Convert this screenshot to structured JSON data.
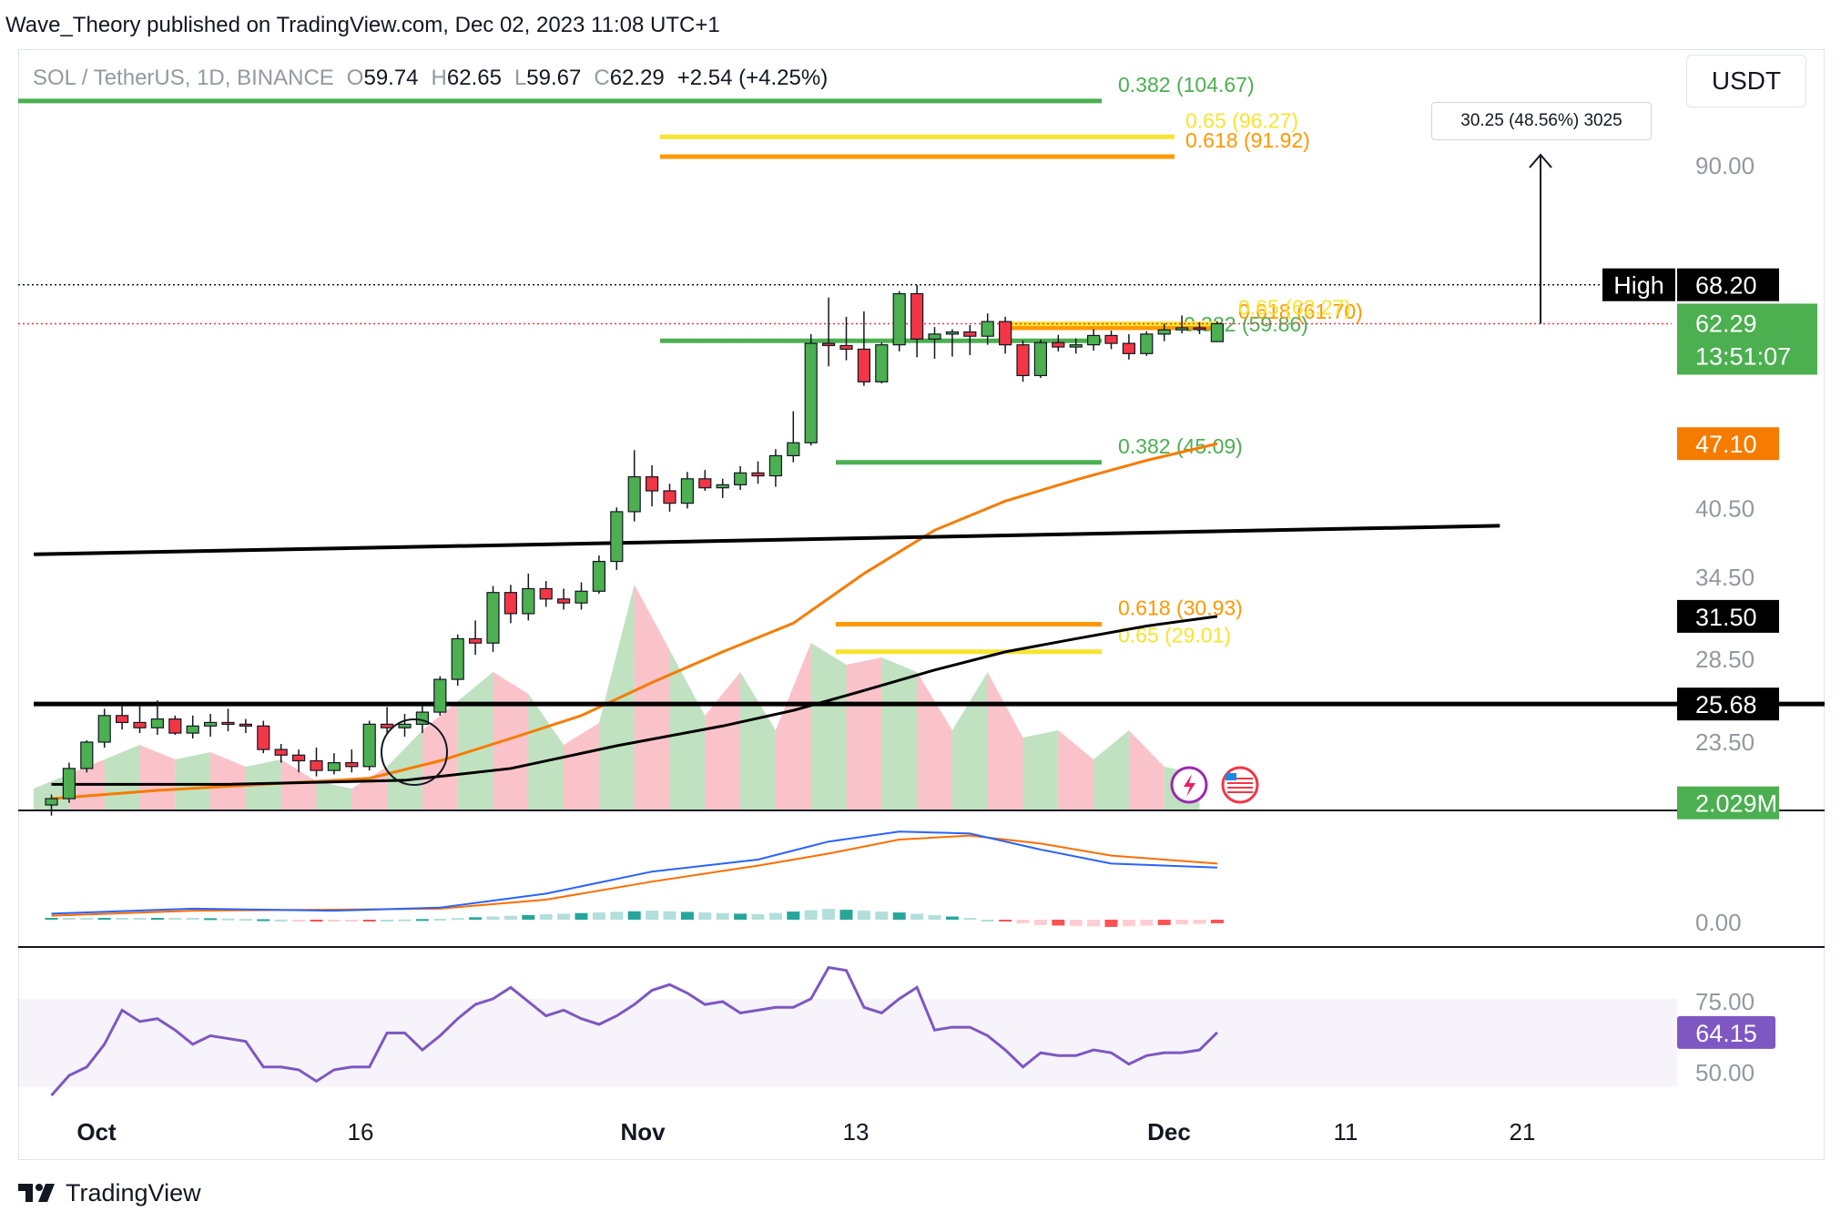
{
  "header": {
    "publisher_line": "Wave_Theory published on TradingView.com, Dec 02, 2023 11:08 UTC+1"
  },
  "symbol": {
    "title": "SOL / TetherUS, 1D, BINANCE",
    "o_label": "O",
    "o_value": "59.74",
    "h_label": "H",
    "h_value": "62.65",
    "l_label": "L",
    "l_value": "59.67",
    "c_label": "C",
    "c_value": "62.29",
    "change": "+2.54 (+4.25%)"
  },
  "currency_button": "USDT",
  "measure_label": "30.25 (48.56%) 3025",
  "brand": "TradingView",
  "colors": {
    "up": "#4caf50",
    "down": "#f23645",
    "fib_green": "#4caf50",
    "fib_yellow": "#f7e42f",
    "fib_orange": "#ff9800",
    "ema_orange": "#f57c00",
    "ma_black": "#000000",
    "rsi": "#7e57c2",
    "macd": "#2962ff",
    "signal": "#ff6d00"
  },
  "chart_data": {
    "type": "candlestick",
    "price_axis": {
      "ticks": [
        90.0,
        40.5,
        34.5,
        28.5,
        23.5
      ],
      "tick_labels": [
        "90.00",
        "40.50",
        "34.50",
        "28.50",
        "23.50"
      ],
      "scale": "log",
      "visible_range": [
        19.5,
        116
      ]
    },
    "time_axis": {
      "labels": [
        "Oct",
        "16",
        "Nov",
        "13",
        "Dec",
        "11",
        "21"
      ]
    },
    "price_tags": [
      {
        "text": "High",
        "value": "68.20",
        "color": "#000000",
        "price": 68.2
      },
      {
        "text": "",
        "value": "62.29",
        "sub": "13:51:07",
        "color": "#4caf50",
        "price": 62.29
      },
      {
        "text": "",
        "value": "47.10",
        "color": "#f57c00",
        "price": 47.1
      },
      {
        "text": "",
        "value": "31.50",
        "color": "#000000",
        "price": 31.5
      },
      {
        "text": "",
        "value": "25.68",
        "color": "#000000",
        "price": 25.68
      },
      {
        "text": "",
        "value": "2.029M",
        "color": "#4caf50",
        "price": 20.4
      }
    ],
    "fib_levels": [
      {
        "label": "0.382 (104.67)",
        "price": 104.67,
        "color": "#4caf50"
      },
      {
        "label": "0.65 (96.27)",
        "price": 96.27,
        "color": "#f7e42f"
      },
      {
        "label": "0.618 (91.92)",
        "price": 91.92,
        "color": "#ff9800"
      },
      {
        "label": "0.382 (59.86)",
        "price": 59.86,
        "color": "#4caf50"
      },
      {
        "label": "0.618 (61.70)",
        "price": 61.7,
        "color": "#ff9800"
      },
      {
        "label": "0.65 (62.27)",
        "price": 62.27,
        "color": "#f7e42f"
      },
      {
        "label": "0.382 (45.09)",
        "price": 45.09,
        "color": "#4caf50"
      },
      {
        "label": "0.618 (30.93)",
        "price": 30.93,
        "color": "#ff9800"
      },
      {
        "label": "0.65 (29.01)",
        "price": 29.01,
        "color": "#f7e42f"
      }
    ],
    "candles": [
      [
        20.3,
        20.8,
        19.8,
        20.6
      ],
      [
        20.6,
        22.4,
        20.4,
        22.1
      ],
      [
        22.1,
        23.6,
        21.9,
        23.5
      ],
      [
        23.5,
        25.4,
        23.2,
        25.0
      ],
      [
        25.0,
        25.6,
        24.2,
        24.6
      ],
      [
        24.6,
        25.6,
        24.0,
        24.3
      ],
      [
        24.3,
        25.9,
        23.9,
        24.8
      ],
      [
        24.8,
        25.0,
        23.9,
        24.0
      ],
      [
        24.0,
        25.0,
        23.7,
        24.4
      ],
      [
        24.4,
        25.1,
        23.8,
        24.6
      ],
      [
        24.6,
        25.4,
        24.1,
        24.5
      ],
      [
        24.5,
        24.8,
        24.0,
        24.4
      ],
      [
        24.4,
        24.7,
        22.9,
        23.1
      ],
      [
        23.1,
        23.4,
        22.4,
        22.8
      ],
      [
        22.8,
        23.1,
        21.9,
        22.5
      ],
      [
        22.5,
        23.2,
        21.7,
        22.0
      ],
      [
        22.0,
        22.9,
        21.8,
        22.4
      ],
      [
        22.4,
        23.1,
        21.9,
        22.2
      ],
      [
        22.2,
        24.7,
        22.0,
        24.5
      ],
      [
        24.5,
        25.5,
        24.0,
        24.3
      ],
      [
        24.3,
        25.1,
        23.8,
        24.5
      ],
      [
        24.5,
        25.6,
        24.0,
        25.2
      ],
      [
        25.2,
        27.4,
        25.0,
        27.2
      ],
      [
        27.2,
        30.2,
        26.8,
        29.9
      ],
      [
        29.9,
        31.2,
        28.8,
        29.6
      ],
      [
        29.6,
        33.8,
        29.0,
        33.3
      ],
      [
        33.3,
        33.9,
        31.0,
        31.7
      ],
      [
        31.7,
        34.8,
        31.2,
        33.6
      ],
      [
        33.6,
        34.2,
        32.2,
        32.8
      ],
      [
        32.8,
        33.6,
        32.0,
        32.5
      ],
      [
        32.5,
        34.1,
        32.0,
        33.4
      ],
      [
        33.4,
        36.3,
        33.2,
        35.8
      ],
      [
        35.8,
        40.6,
        35.1,
        40.2
      ],
      [
        40.2,
        46.4,
        39.3,
        43.6
      ],
      [
        43.6,
        44.8,
        40.7,
        42.2
      ],
      [
        42.2,
        42.9,
        40.2,
        41.0
      ],
      [
        41.0,
        44.1,
        40.5,
        43.4
      ],
      [
        43.4,
        44.3,
        42.2,
        42.5
      ],
      [
        42.5,
        43.4,
        41.5,
        42.8
      ],
      [
        42.8,
        44.7,
        42.3,
        44.0
      ],
      [
        44.0,
        45.2,
        42.9,
        43.7
      ],
      [
        43.7,
        46.5,
        42.6,
        45.8
      ],
      [
        45.8,
        50.8,
        45.1,
        47.2
      ],
      [
        47.2,
        60.8,
        46.9,
        59.5
      ],
      [
        59.5,
        66.2,
        56.4,
        59.2
      ],
      [
        59.2,
        63.3,
        57.2,
        58.7
      ],
      [
        58.7,
        64.1,
        53.9,
        54.4
      ],
      [
        54.4,
        59.6,
        54.2,
        59.3
      ],
      [
        59.3,
        67.2,
        58.4,
        66.8
      ],
      [
        66.8,
        68.2,
        57.6,
        60.1
      ],
      [
        60.1,
        61.8,
        57.4,
        60.8
      ],
      [
        60.8,
        61.5,
        57.7,
        61.1
      ],
      [
        61.1,
        62.1,
        57.9,
        60.5
      ],
      [
        60.5,
        63.8,
        59.3,
        62.6
      ],
      [
        62.6,
        63.3,
        58.1,
        59.3
      ],
      [
        59.3,
        59.9,
        54.4,
        55.2
      ],
      [
        55.2,
        60.0,
        54.9,
        59.6
      ],
      [
        59.6,
        60.7,
        58.4,
        59.0
      ],
      [
        59.0,
        60.2,
        58.1,
        59.3
      ],
      [
        59.3,
        61.5,
        58.5,
        60.6
      ],
      [
        60.6,
        61.3,
        58.7,
        59.5
      ],
      [
        59.5,
        60.8,
        57.3,
        58.1
      ],
      [
        58.1,
        61.2,
        57.8,
        60.8
      ],
      [
        60.8,
        62.3,
        59.8,
        61.4
      ],
      [
        61.4,
        63.5,
        60.9,
        61.7
      ],
      [
        61.7,
        62.5,
        60.8,
        61.6
      ],
      [
        59.74,
        62.65,
        59.67,
        62.29
      ]
    ],
    "ema_50": [
      [
        0,
        20.6
      ],
      [
        6,
        21.0
      ],
      [
        12,
        21.3
      ],
      [
        18,
        21.6
      ],
      [
        22,
        22.5
      ],
      [
        26,
        23.7
      ],
      [
        30,
        25.0
      ],
      [
        34,
        27.0
      ],
      [
        38,
        29.0
      ],
      [
        42,
        31.0
      ],
      [
        46,
        34.8
      ],
      [
        50,
        38.5
      ],
      [
        54,
        41.2
      ],
      [
        58,
        43.3
      ],
      [
        62,
        45.3
      ],
      [
        66,
        47.1
      ]
    ],
    "ma_200": [
      [
        0,
        21.3
      ],
      [
        10,
        21.3
      ],
      [
        20,
        21.5
      ],
      [
        26,
        22.1
      ],
      [
        32,
        23.3
      ],
      [
        38,
        24.4
      ],
      [
        42,
        25.3
      ],
      [
        46,
        26.5
      ],
      [
        50,
        27.8
      ],
      [
        54,
        29.0
      ],
      [
        58,
        29.9
      ],
      [
        62,
        30.8
      ],
      [
        66,
        31.5
      ]
    ],
    "trendlines": [
      {
        "name": "upper",
        "from": [
          -1,
          36.4
        ],
        "to": [
          82,
          38.9
        ],
        "color": "#000000"
      },
      {
        "name": "horizontal",
        "from": [
          -1,
          25.68
        ],
        "to": [
          101,
          25.68
        ],
        "color": "#000000"
      }
    ],
    "volume_profile": [
      [
        0,
        0.15
      ],
      [
        2,
        0.25
      ],
      [
        4,
        0.35
      ],
      [
        6,
        0.45
      ],
      [
        8,
        0.35
      ],
      [
        10,
        0.4
      ],
      [
        12,
        0.3
      ],
      [
        14,
        0.35
      ],
      [
        16,
        0.2
      ],
      [
        18,
        0.15
      ],
      [
        20,
        0.3
      ],
      [
        22,
        0.55
      ],
      [
        24,
        0.75
      ],
      [
        26,
        0.95
      ],
      [
        28,
        0.8
      ],
      [
        30,
        0.45
      ],
      [
        32,
        0.6
      ],
      [
        34,
        1.55
      ],
      [
        36,
        1.1
      ],
      [
        38,
        0.65
      ],
      [
        40,
        0.95
      ],
      [
        42,
        0.55
      ],
      [
        44,
        1.15
      ],
      [
        46,
        1.0
      ],
      [
        48,
        1.05
      ],
      [
        50,
        0.95
      ],
      [
        52,
        0.55
      ],
      [
        54,
        0.95
      ],
      [
        56,
        0.5
      ],
      [
        58,
        0.55
      ],
      [
        60,
        0.35
      ],
      [
        62,
        0.55
      ],
      [
        64,
        0.3
      ],
      [
        66,
        0.25
      ]
    ],
    "macd": {
      "zero_label": "0.00",
      "macd_line": [
        [
          0,
          0.3
        ],
        [
          8,
          0.55
        ],
        [
          16,
          0.45
        ],
        [
          22,
          0.6
        ],
        [
          28,
          1.3
        ],
        [
          34,
          2.4
        ],
        [
          40,
          3.0
        ],
        [
          44,
          3.9
        ],
        [
          48,
          4.4
        ],
        [
          52,
          4.3
        ],
        [
          56,
          3.5
        ],
        [
          60,
          2.8
        ],
        [
          66,
          2.6
        ]
      ],
      "signal_line": [
        [
          0,
          0.2
        ],
        [
          8,
          0.45
        ],
        [
          16,
          0.5
        ],
        [
          22,
          0.55
        ],
        [
          28,
          1.0
        ],
        [
          34,
          1.9
        ],
        [
          40,
          2.7
        ],
        [
          44,
          3.3
        ],
        [
          48,
          4.0
        ],
        [
          52,
          4.2
        ],
        [
          56,
          3.8
        ],
        [
          60,
          3.2
        ],
        [
          66,
          2.8
        ]
      ]
    },
    "rsi": {
      "levels": [
        "75.00",
        "50.00"
      ],
      "current": "64.15",
      "values": [
        [
          0,
          42
        ],
        [
          1,
          49
        ],
        [
          2,
          52
        ],
        [
          3,
          60
        ],
        [
          4,
          72
        ],
        [
          5,
          68
        ],
        [
          6,
          69
        ],
        [
          7,
          65
        ],
        [
          8,
          60
        ],
        [
          9,
          63
        ],
        [
          10,
          62
        ],
        [
          11,
          61
        ],
        [
          12,
          52
        ],
        [
          13,
          52
        ],
        [
          14,
          51
        ],
        [
          15,
          47
        ],
        [
          16,
          51
        ],
        [
          17,
          52
        ],
        [
          18,
          52
        ],
        [
          19,
          64
        ],
        [
          20,
          64
        ],
        [
          21,
          58
        ],
        [
          22,
          63
        ],
        [
          23,
          69
        ],
        [
          24,
          74
        ],
        [
          25,
          76
        ],
        [
          26,
          80
        ],
        [
          27,
          75
        ],
        [
          28,
          70
        ],
        [
          29,
          72
        ],
        [
          30,
          69
        ],
        [
          31,
          67
        ],
        [
          32,
          70
        ],
        [
          33,
          74
        ],
        [
          34,
          79
        ],
        [
          35,
          81
        ],
        [
          36,
          78
        ],
        [
          37,
          74
        ],
        [
          38,
          75
        ],
        [
          39,
          71
        ],
        [
          40,
          72
        ],
        [
          41,
          73
        ],
        [
          42,
          73
        ],
        [
          43,
          76
        ],
        [
          44,
          87
        ],
        [
          45,
          86
        ],
        [
          46,
          73
        ],
        [
          47,
          71
        ],
        [
          48,
          76
        ],
        [
          49,
          80
        ],
        [
          50,
          65
        ],
        [
          51,
          66
        ],
        [
          52,
          66
        ],
        [
          53,
          63
        ],
        [
          54,
          58
        ],
        [
          55,
          52
        ],
        [
          56,
          57
        ],
        [
          57,
          56
        ],
        [
          58,
          56
        ],
        [
          59,
          58
        ],
        [
          60,
          57
        ],
        [
          61,
          53
        ],
        [
          62,
          56
        ],
        [
          63,
          57
        ],
        [
          64,
          57
        ],
        [
          65,
          58
        ],
        [
          66,
          64.15
        ]
      ]
    }
  }
}
